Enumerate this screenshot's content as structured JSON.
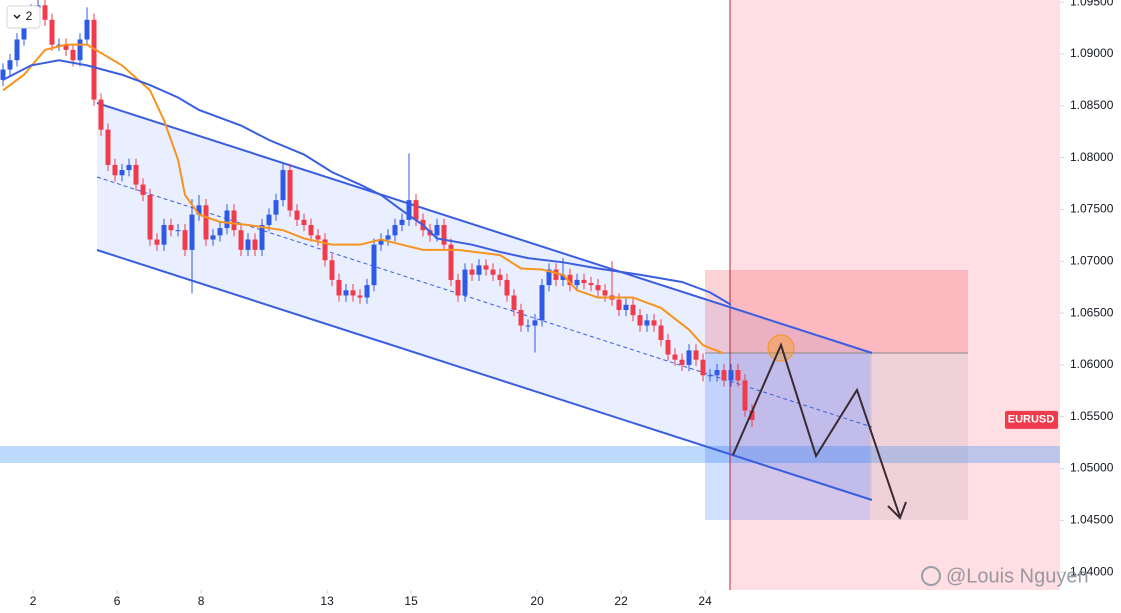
{
  "chart_data": {
    "type": "candlestick",
    "symbol": "EURUSD",
    "watermark": "@Louis Nguyen",
    "interval_button": "2",
    "up_color": "#2f5ae6",
    "down_color": "#ef3b4c",
    "xlim": [
      -0.43,
      151
    ],
    "ylim": [
      1.03828,
      1.09521
    ],
    "grid": false,
    "xticks": [
      {
        "value": 4.3,
        "label": "2"
      },
      {
        "value": 16.3,
        "label": "6"
      },
      {
        "value": 28.3,
        "label": "8"
      },
      {
        "value": 46.3,
        "label": "13"
      },
      {
        "value": 58.3,
        "label": "15"
      },
      {
        "value": 76.3,
        "label": "20"
      },
      {
        "value": 88.3,
        "label": "22"
      },
      {
        "value": 100.3,
        "label": "24"
      }
    ],
    "yticks": [
      {
        "value": 1.04,
        "label": "1.04000"
      },
      {
        "value": 1.045,
        "label": "1.04500"
      },
      {
        "value": 1.05,
        "label": "1.05000"
      },
      {
        "value": 1.055,
        "label": "1.05500"
      },
      {
        "value": 1.06,
        "label": "1.06000"
      },
      {
        "value": 1.065,
        "label": "1.06500"
      },
      {
        "value": 1.07,
        "label": "1.07000"
      },
      {
        "value": 1.075,
        "label": "1.07500"
      },
      {
        "value": 1.08,
        "label": "1.08000"
      },
      {
        "value": 1.085,
        "label": "1.08500"
      },
      {
        "value": 1.09,
        "label": "1.09000"
      },
      {
        "value": 1.095,
        "label": "1.09500"
      }
    ],
    "x": [
      0,
      1,
      2,
      3,
      4,
      5,
      6,
      7,
      8,
      9,
      10,
      11,
      12,
      13,
      14,
      15,
      16,
      17,
      18,
      19,
      20,
      21,
      22,
      23,
      24,
      25,
      26,
      27,
      28,
      29,
      30,
      31,
      32,
      33,
      34,
      35,
      36,
      37,
      38,
      39,
      40,
      41,
      42,
      43,
      44,
      45,
      46,
      47,
      48,
      49,
      50,
      51,
      52,
      53,
      54,
      55,
      56,
      57,
      58,
      59,
      60,
      61,
      62,
      63,
      64,
      65,
      66,
      67,
      68,
      69,
      70,
      71,
      72,
      73,
      74,
      75,
      76,
      77,
      78,
      79,
      80,
      81,
      82,
      83,
      84,
      85,
      86,
      87,
      88,
      89,
      90,
      91,
      92,
      93,
      94,
      95,
      96,
      97,
      98,
      99,
      100,
      101,
      102,
      103,
      104,
      105,
      106,
      107
    ],
    "open": [
      1.0875,
      1.0885,
      1.0894,
      1.0914,
      1.0933,
      1.0942,
      1.0947,
      1.0933,
      1.0909,
      1.0909,
      1.0904,
      1.0894,
      1.0914,
      1.0933,
      1.0856,
      1.0827,
      1.0793,
      1.0783,
      1.0788,
      1.0793,
      1.0774,
      1.0764,
      1.0721,
      1.0716,
      1.0735,
      1.073,
      1.073,
      1.0711,
      1.0745,
      1.0754,
      1.0721,
      1.0725,
      1.0732,
      1.0749,
      1.073,
      1.0711,
      1.0721,
      1.0711,
      1.0735,
      1.0745,
      1.0759,
      1.0788,
      1.0749,
      1.074,
      1.0735,
      1.0725,
      1.0721,
      1.0701,
      1.0682,
      1.0667,
      1.0672,
      1.0667,
      1.0665,
      1.0677,
      1.0716,
      1.0721,
      1.0725,
      1.0735,
      1.074,
      1.0759,
      1.074,
      1.073,
      1.0725,
      1.0735,
      1.0716,
      1.0682,
      1.0667,
      1.0692,
      1.0687,
      1.0696,
      1.0692,
      1.0687,
      1.0682,
      1.0667,
      1.0653,
      1.0638,
      1.0638,
      1.0643,
      1.0677,
      1.0692,
      1.0682,
      1.0687,
      1.0677,
      1.0682,
      1.0679,
      1.0677,
      1.0672,
      1.0667,
      1.0663,
      1.0653,
      1.0658,
      1.0648,
      1.0638,
      1.0643,
      1.0638,
      1.0624,
      1.061,
      1.0605,
      1.06,
      1.0614,
      1.0605,
      1.059,
      1.059,
      1.0595,
      1.0585,
      1.0595,
      1.0585,
      1.0556
    ],
    "high": [
      1.0891,
      1.09,
      1.092,
      1.0939,
      1.0948,
      1.0953,
      1.0953,
      1.0939,
      1.0915,
      1.0915,
      1.091,
      1.092,
      1.0945,
      1.0939,
      1.0862,
      1.0833,
      1.0799,
      1.0794,
      1.0799,
      1.0799,
      1.078,
      1.077,
      1.0727,
      1.0741,
      1.0741,
      1.0736,
      1.0736,
      1.076,
      1.0764,
      1.076,
      1.0731,
      1.0738,
      1.0755,
      1.0755,
      1.0736,
      1.0727,
      1.0727,
      1.0741,
      1.0751,
      1.0765,
      1.0794,
      1.0794,
      1.0755,
      1.0746,
      1.0741,
      1.0731,
      1.0727,
      1.0707,
      1.0688,
      1.0678,
      1.0678,
      1.0673,
      1.0683,
      1.0722,
      1.0727,
      1.0731,
      1.0741,
      1.0746,
      1.0804,
      1.0765,
      1.0746,
      1.0736,
      1.0741,
      1.0741,
      1.0722,
      1.0688,
      1.0698,
      1.0698,
      1.0702,
      1.0702,
      1.0698,
      1.0693,
      1.0688,
      1.0673,
      1.0659,
      1.0644,
      1.0649,
      1.0683,
      1.0698,
      1.0698,
      1.0703,
      1.0693,
      1.0688,
      1.0688,
      1.0685,
      1.0683,
      1.0678,
      1.07,
      1.0669,
      1.0664,
      1.0664,
      1.0654,
      1.0649,
      1.0649,
      1.0644,
      1.063,
      1.0616,
      1.0611,
      1.062,
      1.062,
      1.0611,
      1.0596,
      1.0601,
      1.0601,
      1.0601,
      1.0601,
      1.0591,
      1.0562
    ],
    "low": [
      1.0869,
      1.0879,
      1.0888,
      1.0908,
      1.0927,
      1.0936,
      1.0927,
      1.0903,
      1.0903,
      1.0898,
      1.0888,
      1.0888,
      1.0908,
      1.085,
      1.0821,
      1.0787,
      1.0777,
      1.0777,
      1.0782,
      1.0768,
      1.0758,
      1.0715,
      1.071,
      1.071,
      1.0724,
      1.0724,
      1.0705,
      1.0669,
      1.0739,
      1.0715,
      1.0715,
      1.0719,
      1.0726,
      1.0724,
      1.0705,
      1.0705,
      1.0705,
      1.0705,
      1.0729,
      1.0739,
      1.0753,
      1.0743,
      1.0734,
      1.0729,
      1.0719,
      1.0715,
      1.0695,
      1.0676,
      1.0661,
      1.0661,
      1.0661,
      1.0659,
      1.0659,
      1.0671,
      1.071,
      1.0715,
      1.0719,
      1.0729,
      1.0734,
      1.0734,
      1.0724,
      1.0719,
      1.0719,
      1.071,
      1.0676,
      1.0661,
      1.0661,
      1.0681,
      1.0681,
      1.0686,
      1.0681,
      1.0676,
      1.0661,
      1.0647,
      1.0632,
      1.0632,
      1.0612,
      1.0637,
      1.0671,
      1.0676,
      1.0676,
      1.0671,
      1.0671,
      1.0673,
      1.0671,
      1.0666,
      1.0661,
      1.0657,
      1.0647,
      1.0647,
      1.0642,
      1.0632,
      1.0632,
      1.0632,
      1.0618,
      1.0604,
      1.0599,
      1.0594,
      1.0594,
      1.0599,
      1.0584,
      1.0584,
      1.0584,
      1.0579,
      1.0579,
      1.0579,
      1.055,
      1.054
    ],
    "close": [
      1.0885,
      1.0894,
      1.0914,
      1.0933,
      1.0942,
      1.0947,
      1.0933,
      1.0909,
      1.0909,
      1.0904,
      1.0894,
      1.0914,
      1.0933,
      1.0856,
      1.0827,
      1.0793,
      1.0783,
      1.0788,
      1.0793,
      1.0774,
      1.0764,
      1.0721,
      1.0716,
      1.0735,
      1.073,
      1.073,
      1.0711,
      1.0745,
      1.0754,
      1.0721,
      1.0725,
      1.0732,
      1.0749,
      1.073,
      1.0711,
      1.0721,
      1.0711,
      1.0735,
      1.0745,
      1.0759,
      1.0788,
      1.0749,
      1.074,
      1.0735,
      1.0725,
      1.0721,
      1.0701,
      1.0682,
      1.0667,
      1.0672,
      1.0667,
      1.0665,
      1.0677,
      1.0716,
      1.0721,
      1.0725,
      1.0735,
      1.074,
      1.0759,
      1.074,
      1.073,
      1.0725,
      1.0735,
      1.0716,
      1.0682,
      1.0667,
      1.0692,
      1.0687,
      1.0696,
      1.0692,
      1.0687,
      1.0682,
      1.0667,
      1.0653,
      1.0638,
      1.0638,
      1.0643,
      1.0677,
      1.0692,
      1.0682,
      1.0687,
      1.0677,
      1.0682,
      1.0679,
      1.0677,
      1.0672,
      1.0667,
      1.0663,
      1.0653,
      1.0658,
      1.0648,
      1.0638,
      1.0643,
      1.0638,
      1.0624,
      1.061,
      1.0605,
      1.06,
      1.0614,
      1.0605,
      1.059,
      1.059,
      1.0595,
      1.0585,
      1.0595,
      1.0585,
      1.0556,
      1.0547
    ],
    "series": [
      {
        "color": "#f7931e",
        "x": [
          0,
          3,
          6,
          9,
          12,
          17,
          21,
          23,
          25,
          26,
          28,
          31,
          35,
          40,
          43,
          47,
          51,
          54,
          57,
          60,
          65,
          71,
          74,
          77,
          80,
          82,
          85,
          90,
          94,
          98,
          100,
          103
        ],
        "values": [
          1.0865,
          1.088,
          1.0904,
          1.0909,
          1.0909,
          1.0889,
          1.0865,
          1.0836,
          1.0798,
          1.0764,
          1.0745,
          1.0738,
          1.0735,
          1.073,
          1.0722,
          1.0716,
          1.0716,
          1.0721,
          1.0716,
          1.0711,
          1.0711,
          1.0706,
          1.0693,
          1.0692,
          1.0687,
          1.0672,
          1.0665,
          1.0665,
          1.0655,
          1.0634,
          1.0619,
          1.0611
        ]
      },
      {
        "color": "#3a5ee0",
        "x": [
          0,
          4,
          8,
          12,
          17,
          21,
          25,
          28,
          34,
          38,
          43,
          47,
          51,
          54,
          57,
          60,
          62,
          67,
          71,
          75,
          80,
          85,
          91,
          97,
          101,
          104
        ],
        "values": [
          1.0875,
          1.0889,
          1.0894,
          1.0889,
          1.088,
          1.087,
          1.0858,
          1.0846,
          1.0831,
          1.0817,
          1.0803,
          1.0786,
          1.0774,
          1.0764,
          1.0749,
          1.0735,
          1.0722,
          1.0716,
          1.0709,
          1.0703,
          1.0699,
          1.0693,
          1.0687,
          1.068,
          1.067,
          1.0658
        ]
      }
    ]
  }
}
